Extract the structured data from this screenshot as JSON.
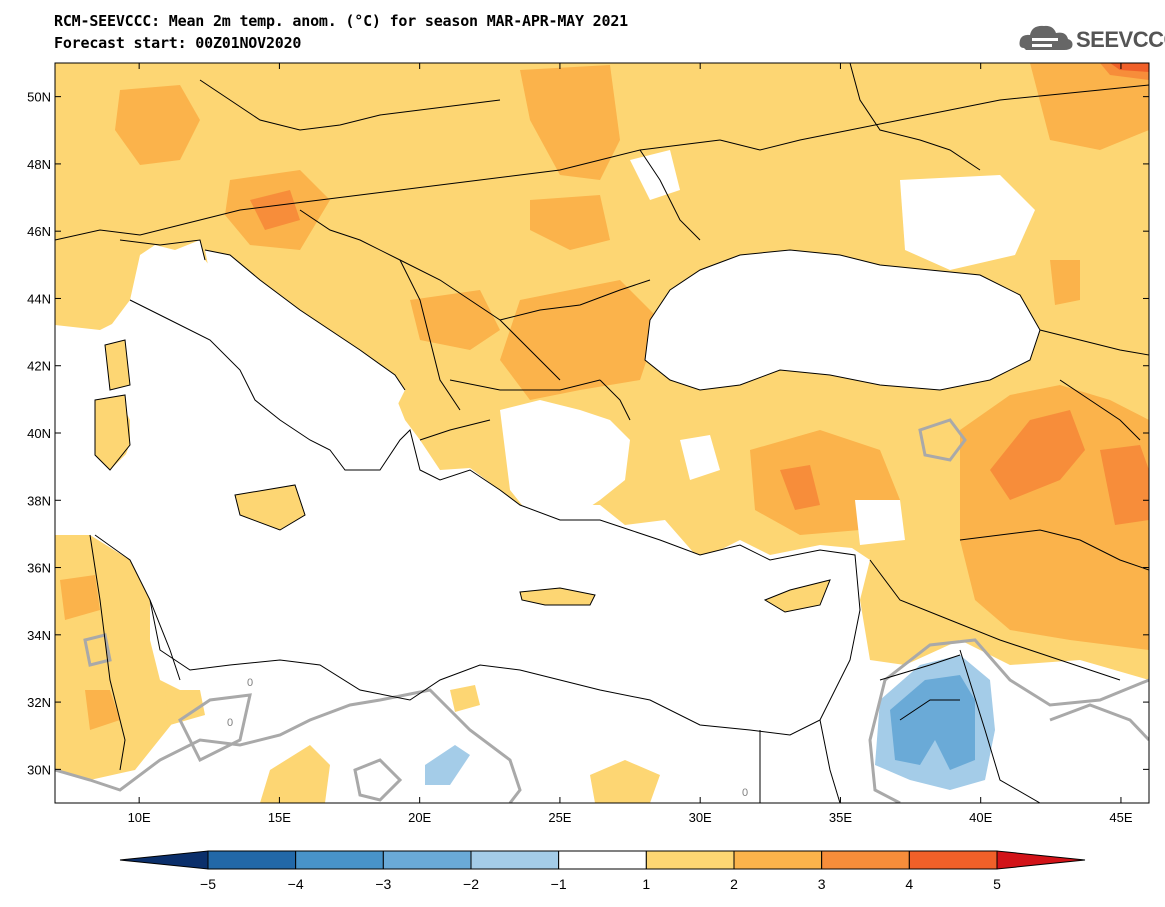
{
  "title_line1": "RCM-SEEVCCC: Mean 2m temp. anom. (°C) for season MAR-APR-MAY 2021",
  "title_line2": "Forecast start: 00Z01NOV2020",
  "logo_text": "SEEVCCC",
  "map": {
    "lon_range": [
      7,
      46
    ],
    "lat_range": [
      29,
      51
    ],
    "lat_ticks": [
      {
        "value": 50,
        "label": "50N"
      },
      {
        "value": 48,
        "label": "48N"
      },
      {
        "value": 46,
        "label": "46N"
      },
      {
        "value": 44,
        "label": "44N"
      },
      {
        "value": 42,
        "label": "42N"
      },
      {
        "value": 40,
        "label": "40N"
      },
      {
        "value": 38,
        "label": "38N"
      },
      {
        "value": 36,
        "label": "36N"
      },
      {
        "value": 34,
        "label": "34N"
      },
      {
        "value": 32,
        "label": "32N"
      },
      {
        "value": 30,
        "label": "30N"
      }
    ],
    "lon_ticks": [
      {
        "value": 10,
        "label": "10E"
      },
      {
        "value": 15,
        "label": "15E"
      },
      {
        "value": 20,
        "label": "20E"
      },
      {
        "value": 25,
        "label": "25E"
      },
      {
        "value": 30,
        "label": "30E"
      },
      {
        "value": 35,
        "label": "35E"
      },
      {
        "value": 40,
        "label": "40E"
      },
      {
        "value": 45,
        "label": "45E"
      }
    ],
    "contour_labels": [
      "0",
      "0",
      "0"
    ],
    "colors": {
      "anom_1_2": "#fdd673",
      "anom_2_3": "#fbb34b",
      "anom_3_4": "#f78d3a",
      "anom_4_5": "#f06029",
      "neg_1_2": "#a4cce8",
      "neg_2_3": "#6aaad7",
      "zero_contour": "#a9a9a9",
      "border": "#000000"
    }
  },
  "colorbar": {
    "labels": [
      "-5",
      "-4",
      "-3",
      "-2",
      "-1",
      "1",
      "2",
      "3",
      "4",
      "5"
    ],
    "colors": [
      "#0b2f6b",
      "#2268a8",
      "#4893c9",
      "#6aaad7",
      "#a4cce8",
      "#ffffff",
      "#fdd673",
      "#fbb34b",
      "#f78d3a",
      "#f06029",
      "#f7402a",
      "#d21318"
    ]
  }
}
